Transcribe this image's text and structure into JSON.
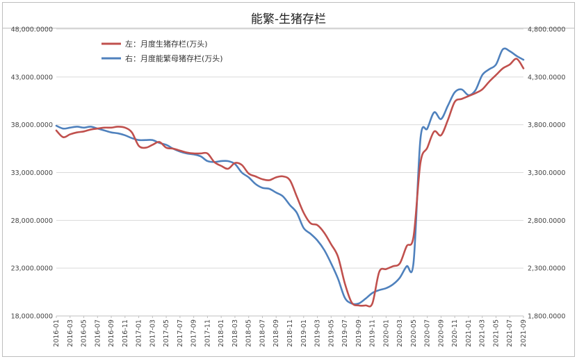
{
  "chart_data": {
    "type": "line",
    "title": "能繁-生猪存栏",
    "legend_position": "top-left",
    "grid": true,
    "x": [
      "2016-01",
      "2016-02",
      "2016-03",
      "2016-04",
      "2016-05",
      "2016-06",
      "2016-07",
      "2016-08",
      "2016-09",
      "2016-10",
      "2016-11",
      "2016-12",
      "2017-01",
      "2017-02",
      "2017-03",
      "2017-04",
      "2017-05",
      "2017-06",
      "2017-07",
      "2017-08",
      "2017-09",
      "2017-10",
      "2017-11",
      "2017-12",
      "2018-01",
      "2018-02",
      "2018-03",
      "2018-04",
      "2018-05",
      "2018-06",
      "2018-07",
      "2018-08",
      "2018-09",
      "2018-10",
      "2018-11",
      "2018-12",
      "2019-01",
      "2019-02",
      "2019-03",
      "2019-04",
      "2019-05",
      "2019-06",
      "2019-07",
      "2019-08",
      "2019-09",
      "2019-10",
      "2019-11",
      "2019-12",
      "2020-01",
      "2020-02",
      "2020-03",
      "2020-04",
      "2020-05",
      "2020-06",
      "2020-07",
      "2020-08",
      "2020-09",
      "2020-10",
      "2020-11",
      "2020-12",
      "2021-01",
      "2021-02",
      "2021-03",
      "2021-04",
      "2021-05",
      "2021-06",
      "2021-07",
      "2021-08",
      "2021-09"
    ],
    "x_tick_labels": [
      "2016-01",
      "2016-03",
      "2016-05",
      "2016-07",
      "2016-09",
      "2016-11",
      "2017-01",
      "2017-03",
      "2017-05",
      "2017-07",
      "2017-09",
      "2017-11",
      "2018-01",
      "2018-03",
      "2018-05",
      "2018-07",
      "2018-09",
      "2018-11",
      "2019-01",
      "2019-03",
      "2019-05",
      "2019-07",
      "2019-09",
      "2019-11",
      "2020-01",
      "2020-03",
      "2020-05",
      "2020-07",
      "2020-09",
      "2020-11",
      "2021-01",
      "2021-03",
      "2021-05",
      "2021-07",
      "2021-09"
    ],
    "y_left": {
      "ylim": [
        18000,
        48000
      ],
      "ticks": [
        18000,
        23000,
        28000,
        33000,
        38000,
        43000,
        48000
      ],
      "tick_labels": [
        "18,000.0000",
        "23,000.0000",
        "28,000.0000",
        "33,000.0000",
        "38,000.0000",
        "43,000.0000",
        "48,000.0000"
      ]
    },
    "y_right": {
      "ylim": [
        1800,
        4800
      ],
      "ticks": [
        1800,
        2300,
        2800,
        3300,
        3800,
        4300,
        4800
      ],
      "tick_labels": [
        "1,800.0000",
        "2,300.0000",
        "2,800.0000",
        "3,300.0000",
        "3,800.0000",
        "4,300.0000",
        "4,800.0000"
      ]
    },
    "series": [
      {
        "name": "左：月度生猪存栏(万头)",
        "axis": "left",
        "color": "#c0504d",
        "values": [
          37400,
          36700,
          37000,
          37200,
          37300,
          37500,
          37600,
          37700,
          37700,
          37800,
          37700,
          37200,
          35800,
          35600,
          35900,
          36200,
          35600,
          35500,
          35300,
          35100,
          35000,
          35000,
          35000,
          34100,
          33700,
          33400,
          34000,
          33800,
          32900,
          32600,
          32300,
          32200,
          32500,
          32600,
          32200,
          30500,
          28800,
          27700,
          27500,
          26700,
          25500,
          24200,
          21400,
          19400,
          19100,
          19100,
          19300,
          22600,
          22900,
          23200,
          23500,
          25300,
          26300,
          34000,
          35600,
          37300,
          36900,
          38500,
          40400,
          40700,
          41000,
          41300,
          41700,
          42500,
          43200,
          43900,
          44300,
          44900,
          43900
        ]
      },
      {
        "name": "右：月度能繁母猪存栏(万头)",
        "axis": "right",
        "color": "#4f81bd",
        "values": [
          3790,
          3760,
          3770,
          3780,
          3770,
          3780,
          3760,
          3740,
          3720,
          3710,
          3690,
          3660,
          3640,
          3640,
          3640,
          3610,
          3590,
          3550,
          3520,
          3500,
          3490,
          3470,
          3420,
          3410,
          3420,
          3420,
          3390,
          3300,
          3250,
          3180,
          3140,
          3130,
          3090,
          3050,
          2960,
          2880,
          2720,
          2660,
          2590,
          2490,
          2350,
          2190,
          1990,
          1930,
          1930,
          1980,
          2040,
          2070,
          2090,
          2130,
          2200,
          2320,
          2360,
          3650,
          3760,
          3930,
          3860,
          4000,
          4140,
          4170,
          4110,
          4160,
          4320,
          4380,
          4430,
          4590,
          4570,
          4520,
          4480
        ]
      }
    ]
  }
}
